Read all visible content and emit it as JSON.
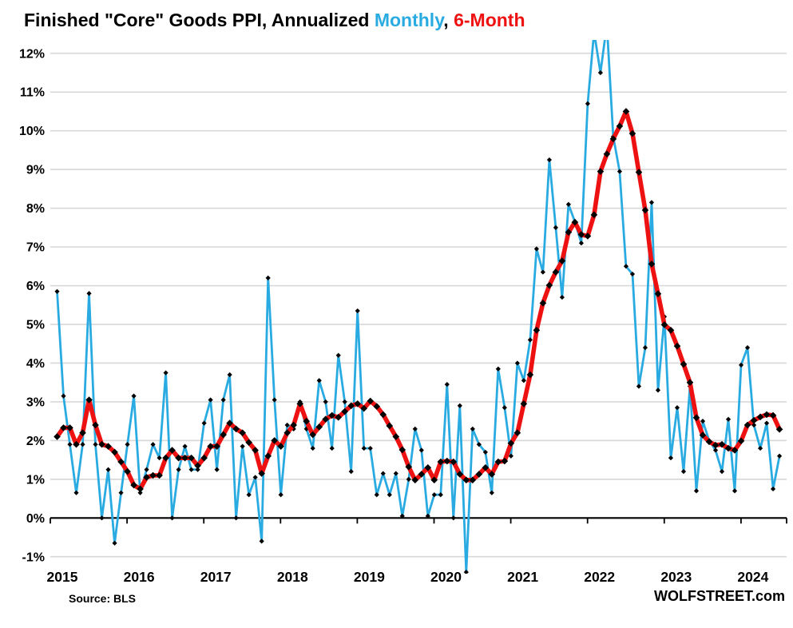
{
  "title": {
    "part_black": "Finished \"Core\" Goods PPI, Annualized ",
    "part_monthly": "Monthly",
    "part_comma": ",",
    "part_sixmonth": " 6-Month"
  },
  "source": "Source: BLS",
  "branding": "WOLFSTREET.com",
  "colors": {
    "monthly_line": "#29ABE2",
    "six_month_line": "#EE1111",
    "marker": "#000000",
    "grid": "#D9D9D9",
    "axis": "#000000",
    "text": "#000000"
  },
  "chart_data": {
    "type": "line",
    "title": "Finished \"Core\" Goods PPI, Annualized Monthly, 6-Month",
    "x_start": "2015-01",
    "x_end": "2024-06",
    "x_cadence": "monthly",
    "x_tick_labels": [
      "2015",
      "2016",
      "2017",
      "2018",
      "2019",
      "2020",
      "2021",
      "2022",
      "2023",
      "2024"
    ],
    "ylim": [
      -1,
      12
    ],
    "ytick_values": [
      12,
      11,
      10,
      9,
      8,
      7,
      6,
      5,
      4,
      3,
      2,
      1,
      0,
      -1
    ],
    "ytick_format": "{v}%",
    "grid": "horizontal",
    "legend_position": "in-title",
    "note": "values in percent, annualized; monthly peaks in Jan 2022 and Mar 2022 exceed 12% and are clipped at the top of the plot",
    "series": [
      {
        "name": "Monthly",
        "color": "#29ABE2",
        "values": [
          5.85,
          3.15,
          1.9,
          0.65,
          1.9,
          5.8,
          1.9,
          0,
          1.25,
          -0.65,
          0.65,
          1.9,
          3.15,
          0.65,
          1.25,
          1.9,
          1.55,
          3.75,
          0,
          1.25,
          1.85,
          1.25,
          1.25,
          2.45,
          3.05,
          1.25,
          3.05,
          3.7,
          0,
          1.85,
          0.6,
          1.05,
          -0.6,
          6.2,
          3.05,
          0.6,
          2.4,
          2.3,
          3,
          2.3,
          1.8,
          3.55,
          3,
          1.8,
          4.2,
          3,
          1.2,
          5.35,
          1.8,
          1.8,
          0.6,
          1.15,
          0.6,
          1.15,
          0.05,
          1,
          2.3,
          1.75,
          0.05,
          0.6,
          0.6,
          3.45,
          0,
          2.9,
          -1.4,
          2.3,
          1.9,
          1.7,
          0.65,
          3.85,
          2.85,
          1.6,
          4,
          3.55,
          4.6,
          6.95,
          6.35,
          9.25,
          7.5,
          5.7,
          8.1,
          7.65,
          7.1,
          10.7,
          12.55,
          11.5,
          12.75,
          9.85,
          8.95,
          6.5,
          6.3,
          3.4,
          4.4,
          8.15,
          3.3,
          5.2,
          1.55,
          2.85,
          1.2,
          3.4,
          0.7,
          2.5,
          2,
          1.75,
          1.2,
          2.55,
          0.7,
          3.95,
          4.4,
          2.4,
          1.8,
          2.45,
          0.75,
          1.6
        ]
      },
      {
        "name": "6-Month",
        "color": "#EE1111",
        "values": [
          2.1,
          2.33,
          2.33,
          1.9,
          2.2,
          3.05,
          2.4,
          1.9,
          1.85,
          1.7,
          1.45,
          1.2,
          0.85,
          0.75,
          1.05,
          1.1,
          1.1,
          1.55,
          1.75,
          1.55,
          1.55,
          1.55,
          1.35,
          1.55,
          1.85,
          1.85,
          2.15,
          2.45,
          2.3,
          2.2,
          1.95,
          1.75,
          1.15,
          1.6,
          2,
          1.85,
          2.2,
          2.4,
          2.95,
          2.5,
          2.15,
          2.35,
          2.55,
          2.65,
          2.6,
          2.75,
          2.9,
          2.95,
          2.83,
          3.02,
          2.88,
          2.67,
          2.38,
          2.1,
          1.76,
          1.32,
          0.98,
          1.13,
          1.3,
          0.98,
          1.45,
          1.47,
          1.45,
          1.13,
          0.98,
          0.98,
          1.13,
          1.3,
          1.13,
          1.45,
          1.47,
          1.93,
          2.2,
          2.95,
          3.7,
          4.85,
          5.55,
          6.01,
          6.35,
          6.64,
          7.38,
          7.64,
          7.32,
          7.28,
          7.83,
          8.95,
          9.4,
          9.79,
          10.12,
          10.5,
          9.93,
          8.93,
          7.95,
          6.56,
          5.79,
          4.99,
          4.85,
          4.44,
          3.97,
          3.5,
          2.59,
          2.14,
          1.97,
          1.88,
          1.9,
          1.8,
          1.75,
          1.99,
          2.4,
          2.52,
          2.61,
          2.67,
          2.65,
          2.29
        ]
      }
    ]
  }
}
